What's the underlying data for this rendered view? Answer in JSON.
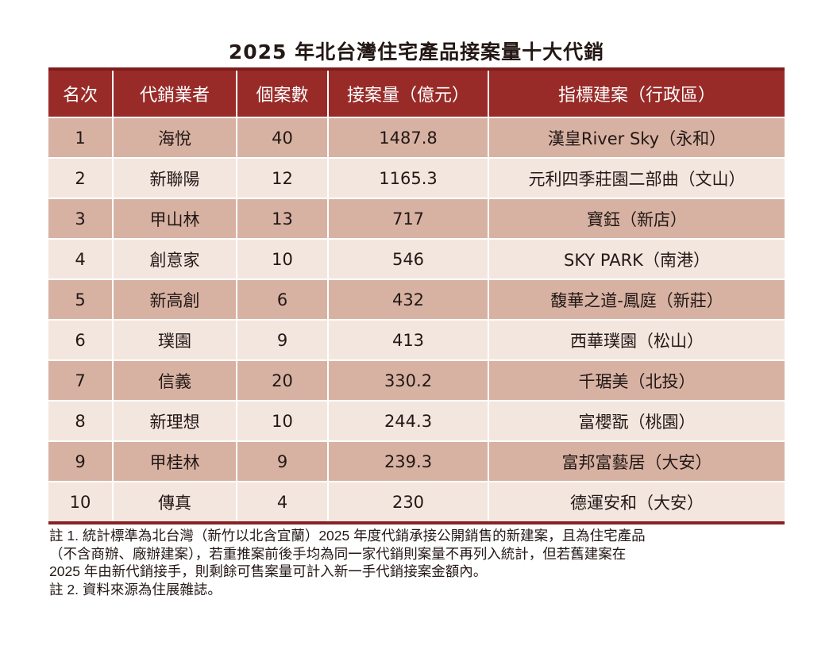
{
  "title": "2025 年北台灣住宅產品接案量十大代銷",
  "colors": {
    "header": "#982b28",
    "row_dark": "#d7b2a3",
    "row_light": "#f2e6df"
  },
  "chart_data": {
    "type": "table",
    "title": "2025 年北台灣住宅產品接案量十大代銷",
    "columns": [
      "名次",
      "代銷業者",
      "個案數",
      "接案量（億元）",
      "指標建案（行政區）"
    ],
    "rows": [
      [
        "1",
        "海悅",
        "40",
        "1487.8",
        "漢皇River Sky（永和）"
      ],
      [
        "2",
        "新聯陽",
        "12",
        "1165.3",
        "元利四季莊園二部曲（文山）"
      ],
      [
        "3",
        "甲山林",
        "13",
        "717",
        "寶鈺（新店）"
      ],
      [
        "4",
        "創意家",
        "10",
        "546",
        "SKY PARK（南港）"
      ],
      [
        "5",
        "新高創",
        "6",
        "432",
        "馥華之道-鳳庭（新莊）"
      ],
      [
        "6",
        "璞園",
        "9",
        "413",
        "西華璞園（松山）"
      ],
      [
        "7",
        "信義",
        "20",
        "330.2",
        "千琚美（北投）"
      ],
      [
        "8",
        "新理想",
        "10",
        "244.3",
        "富櫻翫（桃園）"
      ],
      [
        "9",
        "甲桂林",
        "9",
        "239.3",
        "富邦富藝居（大安）"
      ],
      [
        "10",
        "傳真",
        "4",
        "230",
        "德運安和（大安）"
      ]
    ]
  },
  "notes": [
    "註 1. 統計標準為北台灣（新竹以北含宜蘭）2025 年度代銷承接公開銷售的新建案，且為住宅產品",
    "（不含商辦、廠辦建案），若重推案前後手均為同一家代銷則案量不再列入統計，但若舊建案在",
    "2025 年由新代銷接手，則剩餘可售案量可計入新一手代銷接案金額內。",
    "註 2. 資料來源為住展雜誌。"
  ]
}
